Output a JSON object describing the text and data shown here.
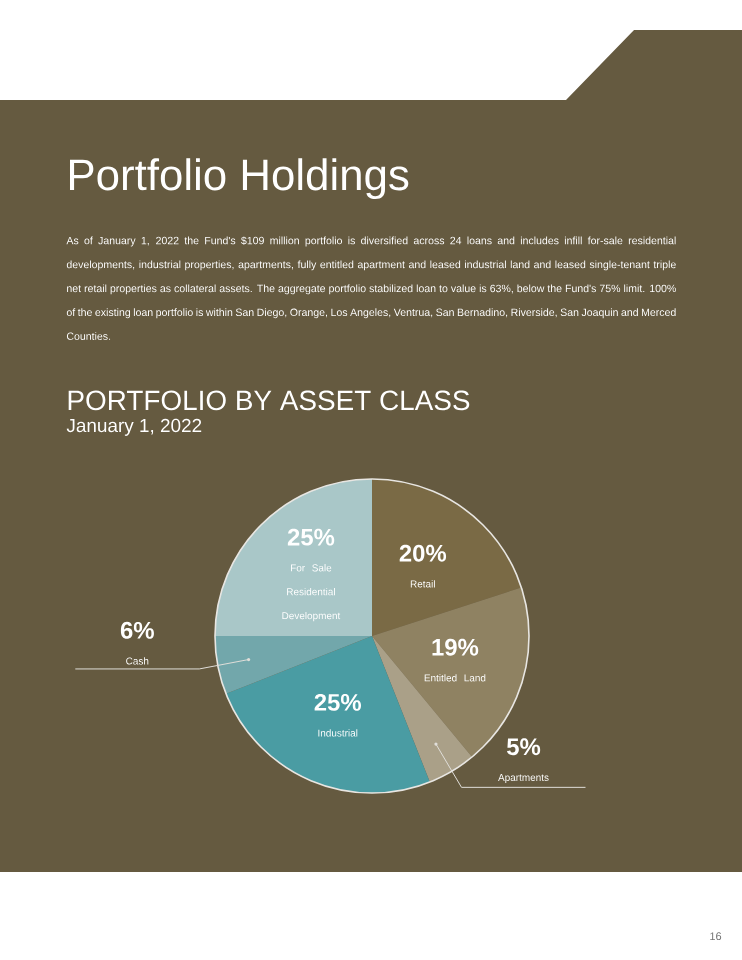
{
  "chart_data": {
    "type": "pie",
    "title": "PORTFOLIO BY ASSET CLASS",
    "subtitle": "January 1, 2022",
    "categories": [
      "Retail",
      "Entitled Land",
      "Apartments",
      "Industrial",
      "Cash",
      "For Sale Residential Development"
    ],
    "values": [
      20,
      19,
      5,
      25,
      6,
      25
    ],
    "value_labels": [
      "20%",
      "19%",
      "5%",
      "25%",
      "6%",
      "25%"
    ],
    "colors": [
      "#7a6a45",
      "#8f8262",
      "#aaa088",
      "#4a9ca3",
      "#72a7ab",
      "#a9c7c8"
    ],
    "annotations": [
      "Portfolio Holdings",
      "As of January 1, 2022 the Fund's $109 million portfolio is diversified across 24 loans and includes infill for-sale residential developments, industrial properties, apartments, fully entitled apartment and leased industrial land and leased single-tenant triple net retail properties as collateral assets. The aggregate portfolio stabilized loan to value is 63%, below the Fund's 75% limit. 100% of the existing loan portfolio is within San Diego, Orange, Los Angeles, Ventrua, San Bernadino, Riverside, San Joaquin and Merced Counties.",
      "16"
    ]
  }
}
